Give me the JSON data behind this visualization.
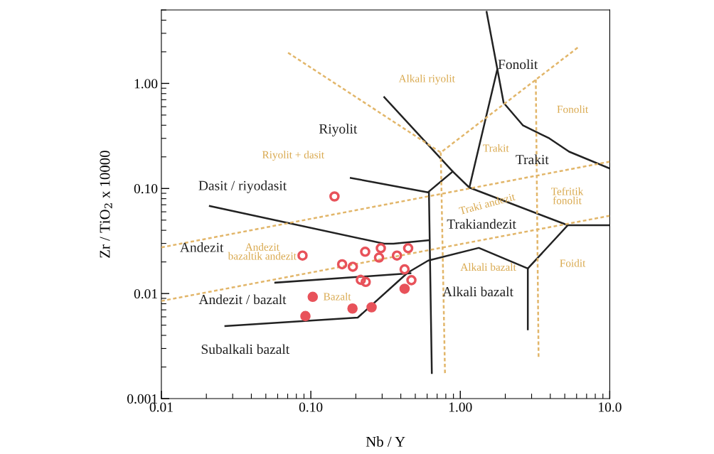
{
  "chart_data": {
    "type": "scatter",
    "xlabel": "Nb / Y",
    "ylabel": "Zr / TiO$_{2}$ x 10000",
    "log": "xy",
    "xlim": [
      0.01,
      10
    ],
    "ylim": [
      0.001,
      5
    ],
    "xticks": [
      {
        "value": 0.01,
        "label": "0.01"
      },
      {
        "value": 0.1,
        "label": "0.10"
      },
      {
        "value": 1,
        "label": "1.00"
      },
      {
        "value": 10,
        "label": "10.0"
      }
    ],
    "yticks": [
      {
        "value": 0.001,
        "label": "0.001"
      },
      {
        "value": 0.01,
        "label": "0.01"
      },
      {
        "value": 0.1,
        "label": "0.10"
      },
      {
        "value": 1,
        "label": "1.00"
      }
    ],
    "marker": "circle",
    "series": [
      {
        "color": "#e8525a",
        "x": [
          0.144,
          0.088,
          0.162,
          0.191,
          0.231,
          0.294,
          0.286,
          0.377,
          0.448,
          0.424,
          0.216,
          0.233,
          0.471
        ],
        "values": [
          0.084,
          0.023,
          0.019,
          0.018,
          0.025,
          0.027,
          0.022,
          0.023,
          0.027,
          0.017,
          0.0135,
          0.0129,
          0.0134
        ]
      },
      {
        "color": "#e8525a",
        "x": [
          0.103,
          0.092,
          0.19,
          0.255,
          0.424
        ],
        "values": [
          0.0093,
          0.0061,
          0.0072,
          0.0074,
          0.0111
        ]
      },
      {
        "type": "line",
        "line_style": "solid",
        "marker": "none",
        "color": "#222222",
        "x": [
          0.185,
          0.608,
          0.89
        ],
        "values": [
          0.126,
          0.092,
          0.145
        ]
      },
      {
        "type": "line",
        "line_style": "solid",
        "marker": "none",
        "color": "#222222",
        "x": [
          0.31,
          0.89,
          1.15,
          5.24,
          10
        ],
        "values": [
          0.74,
          0.145,
          0.102,
          0.0447,
          0.0447
        ]
      },
      {
        "type": "line",
        "line_style": "solid",
        "marker": "none",
        "color": "#222222",
        "x": [
          1.5,
          1.77,
          1.15
        ],
        "values": [
          4.8,
          1.37,
          0.102
        ]
      },
      {
        "type": "line",
        "line_style": "solid",
        "marker": "none",
        "color": "#222222",
        "x": [
          1.77,
          1.95,
          2.62,
          3.94,
          5.35,
          10
        ],
        "values": [
          1.37,
          0.653,
          0.4,
          0.3,
          0.224,
          0.155
        ]
      },
      {
        "type": "line",
        "line_style": "solid",
        "marker": "none",
        "color": "#222222",
        "x": [
          5.24,
          2.83,
          2.83
        ],
        "values": [
          0.0447,
          0.0173,
          0.00457
        ]
      },
      {
        "type": "line",
        "line_style": "solid",
        "marker": "none",
        "color": "#222222",
        "x": [
          2.83,
          1.33,
          0.61,
          0.445,
          0.206,
          0.0268
        ],
        "values": [
          0.0173,
          0.0272,
          0.0206,
          0.0158,
          0.0059,
          0.0049
        ]
      },
      {
        "type": "line",
        "line_style": "solid",
        "marker": "none",
        "color": "#222222",
        "x": [
          0.617,
          0.645
        ],
        "values": [
          0.092,
          0.00175
        ]
      },
      {
        "type": "line",
        "line_style": "solid",
        "marker": "none",
        "color": "#222222",
        "x": [
          0.0211,
          0.31,
          0.357,
          0.617
        ],
        "values": [
          0.068,
          0.0298,
          0.0298,
          0.0322
        ]
      },
      {
        "type": "line",
        "line_style": "solid",
        "marker": "none",
        "color": "#222222",
        "x": [
          0.0578,
          0.464
        ],
        "values": [
          0.0127,
          0.0156
        ]
      },
      {
        "type": "line",
        "line_style": "dashed",
        "marker": "none",
        "color": "#e2b66a",
        "x": [
          0.0704,
          0.74,
          6.1
        ],
        "values": [
          1.96,
          0.22,
          2.19
        ]
      },
      {
        "type": "line",
        "line_style": "dashed",
        "marker": "none",
        "color": "#e2b66a",
        "x": [
          0.01,
          10
        ],
        "values": [
          0.0275,
          0.18
        ]
      },
      {
        "type": "line",
        "line_style": "dashed",
        "marker": "none",
        "color": "#e2b66a",
        "x": [
          0.01,
          10
        ],
        "values": [
          0.0085,
          0.055
        ]
      },
      {
        "type": "line",
        "line_style": "dashed",
        "marker": "none",
        "color": "#e2b66a",
        "x": [
          0.74,
          0.79
        ],
        "values": [
          0.22,
          0.00175
        ]
      },
      {
        "type": "line",
        "line_style": "dashed",
        "marker": "none",
        "color": "#e2b66a",
        "x": [
          3.2,
          3.34
        ],
        "values": [
          1.09,
          0.0025
        ]
      }
    ],
    "annotations": [
      "Riyolit",
      "Dasit / riyodasit",
      "Andezit",
      "Andezit / bazalt",
      "Subalkali bazalt",
      "Fonolit",
      "Trakit",
      "Trakiandezit",
      "Alkali bazalt",
      "Alkali riyolit",
      "Riyolit + dasit",
      "Fonolit",
      "Trakit",
      "Traki andezit",
      "Tefritik\nfonolit",
      "Andezit\nbazaltik andezit",
      "Bazalt",
      "Alkali bazalt",
      "Foidit"
    ]
  }
}
